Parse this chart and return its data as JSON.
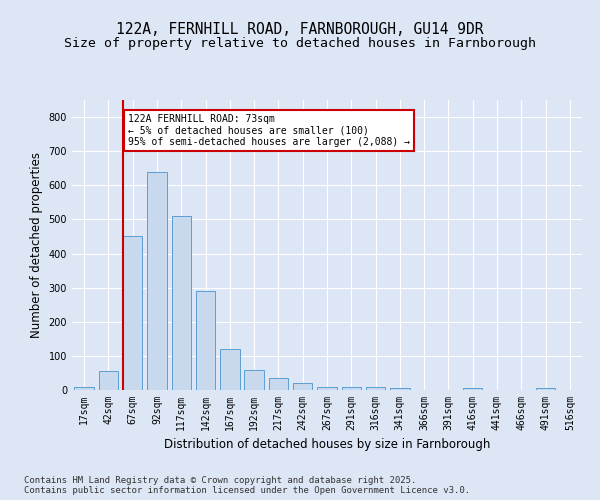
{
  "title_line1": "122A, FERNHILL ROAD, FARNBOROUGH, GU14 9DR",
  "title_line2": "Size of property relative to detached houses in Farnborough",
  "xlabel": "Distribution of detached houses by size in Farnborough",
  "ylabel": "Number of detached properties",
  "categories": [
    "17sqm",
    "42sqm",
    "67sqm",
    "92sqm",
    "117sqm",
    "142sqm",
    "167sqm",
    "192sqm",
    "217sqm",
    "242sqm",
    "267sqm",
    "291sqm",
    "316sqm",
    "341sqm",
    "366sqm",
    "391sqm",
    "416sqm",
    "441sqm",
    "466sqm",
    "491sqm",
    "516sqm"
  ],
  "values": [
    10,
    55,
    450,
    640,
    510,
    290,
    120,
    60,
    35,
    20,
    10,
    8,
    8,
    5,
    0,
    0,
    5,
    0,
    0,
    5,
    0
  ],
  "bar_color": "#c8d9ee",
  "bar_edge_color": "#5a9fd4",
  "vline_color": "#cc0000",
  "annotation_text": "122A FERNHILL ROAD: 73sqm\n← 5% of detached houses are smaller (100)\n95% of semi-detached houses are larger (2,088) →",
  "annotation_box_color": "#ffffff",
  "annotation_box_edge": "#cc0000",
  "background_color": "#dce6f5",
  "plot_bg_color": "#dce6f5",
  "ylim": [
    0,
    850
  ],
  "yticks": [
    0,
    100,
    200,
    300,
    400,
    500,
    600,
    700,
    800
  ],
  "footer": "Contains HM Land Registry data © Crown copyright and database right 2025.\nContains public sector information licensed under the Open Government Licence v3.0.",
  "title_fontsize": 10.5,
  "subtitle_fontsize": 9.5,
  "axis_label_fontsize": 8.5,
  "tick_fontsize": 7,
  "footer_fontsize": 6.5
}
